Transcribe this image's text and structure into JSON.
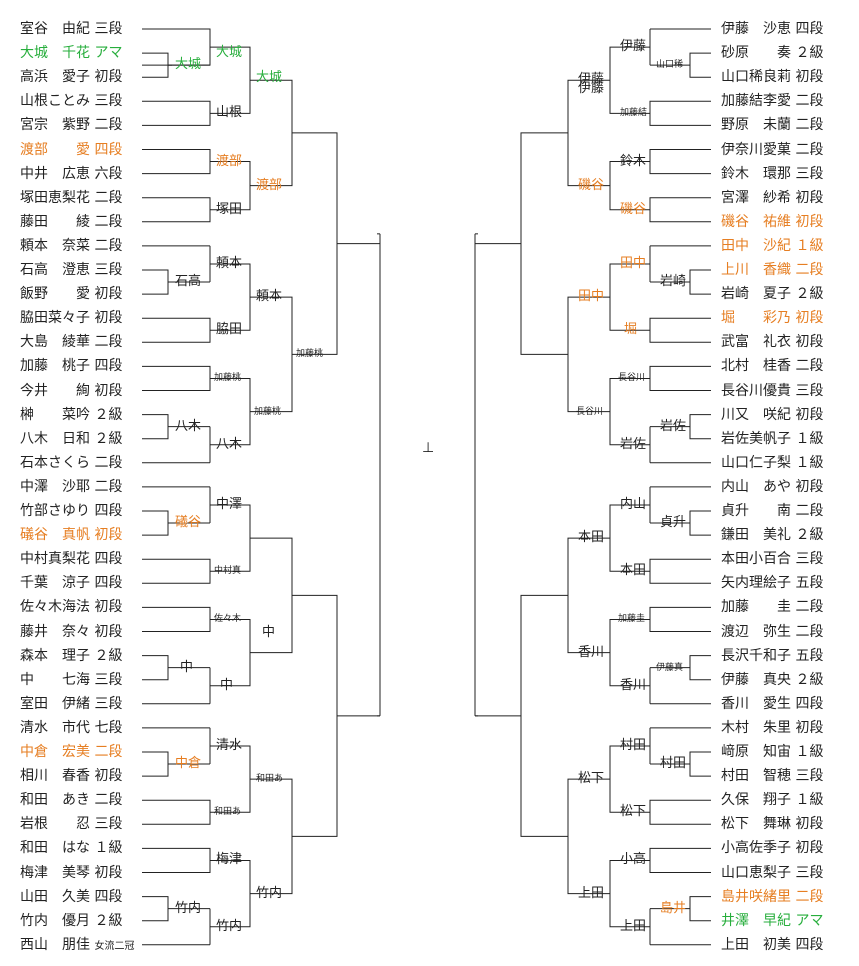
{
  "colors": {
    "line": "#222222",
    "amateur": "#27ae3c",
    "highlight": "#e67e22"
  },
  "left": {
    "players": [
      {
        "text": "室谷　由紀 三段",
        "color": ""
      },
      {
        "text": "大城　千花 アマ",
        "color": "green"
      },
      {
        "text": "高浜　愛子 初段",
        "color": ""
      },
      {
        "text": "山根ことみ 三段",
        "color": ""
      },
      {
        "text": "宮宗　紫野 二段",
        "color": ""
      },
      {
        "text": "渡部　　愛 四段",
        "color": "orange"
      },
      {
        "text": "中井　広恵 六段",
        "color": ""
      },
      {
        "text": "塚田恵梨花 二段",
        "color": ""
      },
      {
        "text": "藤田　　綾 二段",
        "color": ""
      },
      {
        "text": "頼本　奈菜 二段",
        "color": ""
      },
      {
        "text": "石高　澄恵 三段",
        "color": ""
      },
      {
        "text": "飯野　　愛 初段",
        "color": ""
      },
      {
        "text": "脇田菜々子 初段",
        "color": ""
      },
      {
        "text": "大島　綾華 二段",
        "color": ""
      },
      {
        "text": "加藤　桃子 四段",
        "color": ""
      },
      {
        "text": "今井　　絢 初段",
        "color": ""
      },
      {
        "text": "榊　　菜吟 ２級",
        "color": ""
      },
      {
        "text": "八木　日和 ２級",
        "color": ""
      },
      {
        "text": "石本さくら 二段",
        "color": ""
      },
      {
        "text": "中澤　沙耶 二段",
        "color": ""
      },
      {
        "text": "竹部さゆり 四段",
        "color": ""
      },
      {
        "text": "礒谷　真帆 初段",
        "color": "orange"
      },
      {
        "text": "中村真梨花 四段",
        "color": ""
      },
      {
        "text": "千葉　涼子 四段",
        "color": ""
      },
      {
        "text": "佐々木海法 初段",
        "color": ""
      },
      {
        "text": "藤井　奈々 初段",
        "color": ""
      },
      {
        "text": "森本　理子 ２級",
        "color": ""
      },
      {
        "text": "中　　七海 三段",
        "color": ""
      },
      {
        "text": "室田　伊緒 三段",
        "color": ""
      },
      {
        "text": "清水　市代 七段",
        "color": ""
      },
      {
        "text": "中倉　宏美 二段",
        "color": "orange"
      },
      {
        "text": "相川　春香 初段",
        "color": ""
      },
      {
        "text": "和田　あき 二段",
        "color": ""
      },
      {
        "text": "岩根　　忍 三段",
        "color": ""
      },
      {
        "text": "和田　はな １級",
        "color": ""
      },
      {
        "text": "梅津　美琴 初段",
        "color": ""
      },
      {
        "text": "山田　久美 四段",
        "color": ""
      },
      {
        "text": "竹内　優月 ２級",
        "color": ""
      },
      {
        "text": "西山　朋佳 ",
        "extra": "女流二冠",
        "color": ""
      }
    ],
    "winners": [
      {
        "text": "大城",
        "color": "green"
      },
      {
        "text": "大城",
        "color": "green"
      },
      {
        "text": "大城",
        "color": "green"
      },
      {
        "text": "山根",
        "color": ""
      },
      {
        "text": "渡部",
        "color": "orange"
      },
      {
        "text": "渡部",
        "color": "orange"
      },
      {
        "text": "塚田",
        "color": ""
      },
      {
        "text": "石高",
        "color": ""
      },
      {
        "text": "頼本",
        "color": ""
      },
      {
        "text": "頼本",
        "color": ""
      },
      {
        "text": "脇田",
        "color": ""
      },
      {
        "text": "加藤桃",
        "color": ""
      },
      {
        "text": "加藤桃",
        "color": ""
      },
      {
        "text": "加藤桃",
        "color": ""
      },
      {
        "text": "八木",
        "color": ""
      },
      {
        "text": "八木",
        "color": ""
      },
      {
        "text": "中澤",
        "color": ""
      },
      {
        "text": "礒谷",
        "color": "orange"
      },
      {
        "text": "中村真",
        "color": ""
      },
      {
        "text": "佐々木",
        "color": ""
      },
      {
        "text": "中",
        "color": ""
      },
      {
        "text": "中",
        "color": ""
      },
      {
        "text": "中",
        "color": ""
      },
      {
        "text": "清水",
        "color": ""
      },
      {
        "text": "中倉",
        "color": "orange"
      },
      {
        "text": "和田あ",
        "color": ""
      },
      {
        "text": "和田あ",
        "color": ""
      },
      {
        "text": "梅津",
        "color": ""
      },
      {
        "text": "竹内",
        "color": ""
      },
      {
        "text": "竹内",
        "color": ""
      },
      {
        "text": "竹内",
        "color": ""
      }
    ]
  },
  "right": {
    "players": [
      {
        "text": "伊藤　沙恵 四段",
        "color": ""
      },
      {
        "text": "砂原　　奏 ２級",
        "color": ""
      },
      {
        "text": "山口稀良莉 初段",
        "color": ""
      },
      {
        "text": "加藤結李愛 二段",
        "color": ""
      },
      {
        "text": "野原　未蘭 二段",
        "color": ""
      },
      {
        "text": "伊奈川愛菓 二段",
        "color": ""
      },
      {
        "text": "鈴木　環那 三段",
        "color": ""
      },
      {
        "text": "宮澤　紗希 初段",
        "color": ""
      },
      {
        "text": "磯谷　祐維 初段",
        "color": "orange"
      },
      {
        "text": "田中　沙紀 １級",
        "color": "orange"
      },
      {
        "text": "上川　香織 二段",
        "color": "orange"
      },
      {
        "text": "岩崎　夏子 ２級",
        "color": ""
      },
      {
        "text": "堀　　彩乃 初段",
        "color": "orange"
      },
      {
        "text": "武富　礼衣 初段",
        "color": ""
      },
      {
        "text": "北村　桂香 二段",
        "color": ""
      },
      {
        "text": "長谷川優貴 三段",
        "color": ""
      },
      {
        "text": "川又　咲紀 初段",
        "color": ""
      },
      {
        "text": "岩佐美帆子 １級",
        "color": ""
      },
      {
        "text": "山口仁子梨 １級",
        "color": ""
      },
      {
        "text": "内山　あや 初段",
        "color": ""
      },
      {
        "text": "貞升　　南 二段",
        "color": ""
      },
      {
        "text": "鎌田　美礼 ２級",
        "color": ""
      },
      {
        "text": "本田小百合 三段",
        "color": ""
      },
      {
        "text": "矢内理絵子 五段",
        "color": ""
      },
      {
        "text": "加藤　　圭 二段",
        "color": ""
      },
      {
        "text": "渡辺　弥生 二段",
        "color": ""
      },
      {
        "text": "長沢千和子 五段",
        "color": ""
      },
      {
        "text": "伊藤　真央 ２級",
        "color": ""
      },
      {
        "text": "香川　愛生 四段",
        "color": ""
      },
      {
        "text": "木村　朱里 初段",
        "color": ""
      },
      {
        "text": "﨑原　知宙 １級",
        "color": ""
      },
      {
        "text": "村田　智穂 三段",
        "color": ""
      },
      {
        "text": "久保　翔子 １級",
        "color": ""
      },
      {
        "text": "松下　舞琳 初段",
        "color": ""
      },
      {
        "text": "小高佐季子 初段",
        "color": ""
      },
      {
        "text": "山口恵梨子 三段",
        "color": ""
      },
      {
        "text": "島井咲緒里 二段",
        "color": "orange"
      },
      {
        "text": "井澤　早紀 アマ",
        "color": "green"
      },
      {
        "text": "上田　初美 四段",
        "color": ""
      }
    ],
    "winners": [
      {
        "text": "山口稀",
        "color": ""
      },
      {
        "text": "伊藤",
        "color": ""
      },
      {
        "text": "加藤結",
        "color": ""
      },
      {
        "text": "伊藤",
        "color": ""
      },
      {
        "text": "鈴木",
        "color": ""
      },
      {
        "text": "磯谷",
        "color": "orange"
      },
      {
        "text": "磯谷",
        "color": "orange"
      },
      {
        "text": "伊藤",
        "color": ""
      },
      {
        "text": "田中",
        "color": "orange"
      },
      {
        "text": "岩崎",
        "color": ""
      },
      {
        "text": "堀",
        "color": "orange"
      },
      {
        "text": "田中",
        "color": "orange"
      },
      {
        "text": "長谷川",
        "color": ""
      },
      {
        "text": "岩佐",
        "color": ""
      },
      {
        "text": "岩佐",
        "color": ""
      },
      {
        "text": "長谷川",
        "color": ""
      },
      {
        "text": "貞升",
        "color": ""
      },
      {
        "text": "内山",
        "color": ""
      },
      {
        "text": "本田",
        "color": ""
      },
      {
        "text": "本田",
        "color": ""
      },
      {
        "text": "加藤圭",
        "color": ""
      },
      {
        "text": "伊藤真",
        "color": ""
      },
      {
        "text": "香川",
        "color": ""
      },
      {
        "text": "香川",
        "color": ""
      },
      {
        "text": "村田",
        "color": ""
      },
      {
        "text": "村田",
        "color": ""
      },
      {
        "text": "松下",
        "color": ""
      },
      {
        "text": "松下",
        "color": ""
      },
      {
        "text": "小高",
        "color": ""
      },
      {
        "text": "島井",
        "color": "orange"
      },
      {
        "text": "上田",
        "color": ""
      },
      {
        "text": "上田",
        "color": ""
      }
    ]
  },
  "center_mark": "⊥"
}
